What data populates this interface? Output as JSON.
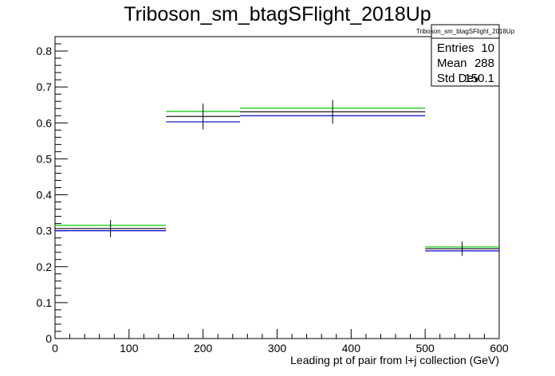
{
  "chart_data": {
    "type": "line",
    "title": "Triboson_sm_btagSFlight_2018Up",
    "xlabel": "Leading pt of pair from l+j collection (GeV)",
    "ylabel": "",
    "xlim": [
      0,
      600
    ],
    "ylim": [
      0,
      0.84
    ],
    "x_ticks": [
      0,
      100,
      200,
      300,
      400,
      500,
      600
    ],
    "y_ticks": [
      0,
      0.1,
      0.2,
      0.3,
      0.4,
      0.5,
      0.6,
      0.7,
      0.8
    ],
    "grid": false,
    "bins": [
      [
        0,
        150
      ],
      [
        150,
        250
      ],
      [
        250,
        500
      ],
      [
        500,
        600
      ]
    ],
    "series": [
      {
        "color": "#00cc00",
        "values": [
          0.315,
          0.632,
          0.641,
          0.255
        ]
      },
      {
        "color": "#000000",
        "values": [
          0.306,
          0.618,
          0.631,
          0.25
        ]
      },
      {
        "color": "#0000cc",
        "values": [
          0.3,
          0.603,
          0.62,
          0.244
        ]
      }
    ],
    "error_bars": {
      "x": [
        75,
        200,
        375,
        550
      ],
      "y": [
        0.306,
        0.618,
        0.631,
        0.25
      ],
      "err": [
        0.024,
        0.036,
        0.033,
        0.02
      ]
    },
    "stats_box": {
      "title": "Triboson_sm_btagSFlight_2018Up",
      "rows": [
        {
          "label": "Entries",
          "value": "10"
        },
        {
          "label": "Mean",
          "value": "288"
        },
        {
          "label": "Std Dev",
          "value": "150.1"
        }
      ]
    }
  }
}
